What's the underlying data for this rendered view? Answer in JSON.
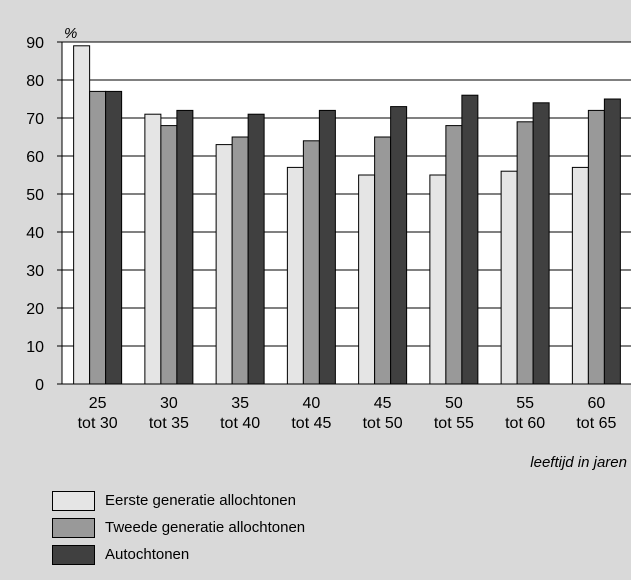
{
  "chart_data": {
    "type": "bar",
    "title": "",
    "ylabel": "%",
    "xlabel": "leeftijd in jaren",
    "ylim": [
      0,
      90
    ],
    "yticks": [
      0,
      10,
      20,
      30,
      40,
      50,
      60,
      70,
      80,
      90
    ],
    "grid": true,
    "categories": [
      [
        "25",
        "tot 30"
      ],
      [
        "30",
        "tot 35"
      ],
      [
        "35",
        "tot 40"
      ],
      [
        "40",
        "tot 45"
      ],
      [
        "45",
        "tot 50"
      ],
      [
        "50",
        "tot 55"
      ],
      [
        "55",
        "tot 60"
      ],
      [
        "60",
        "tot 65"
      ]
    ],
    "series": [
      {
        "name": "Eerste generatie allochtonen",
        "color": "#e5e5e5",
        "values": [
          89,
          71,
          63,
          57,
          55,
          55,
          56,
          57
        ]
      },
      {
        "name": "Tweede generatie allochtonen",
        "color": "#999999",
        "values": [
          77,
          68,
          65,
          64,
          65,
          68,
          69,
          72
        ]
      },
      {
        "name": "Autochtonen",
        "color": "#404040",
        "values": [
          77,
          72,
          71,
          72,
          73,
          76,
          74,
          75
        ]
      }
    ],
    "legend_position": "bottom-left"
  }
}
